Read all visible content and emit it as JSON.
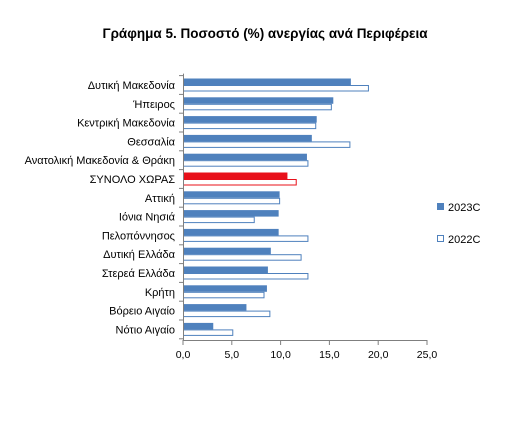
{
  "chart_data": {
    "type": "bar",
    "orientation": "horizontal",
    "title": "Γράφημα 5. Ποσοστό (%) ανεργίας ανά Περιφέρεια",
    "categories": [
      "Δυτική Μακεδονία",
      "Ήπειρος",
      "Κεντρική Μακεδονία",
      "Θεσσαλία",
      "Ανατολική Μακεδονία & Θράκη",
      "ΣΥΝΟΛΟ ΧΩΡΑΣ",
      "Αττική",
      "Ιόνια Νησιά",
      "Πελοπόννησος",
      "Δυτική Ελλάδα",
      "Στερεά Ελλάδα",
      "Κρήτη",
      "Βόρειο Αιγαίο",
      "Νότιο Αιγαίο"
    ],
    "series": [
      {
        "name": "2023C",
        "values": [
          17.2,
          15.4,
          13.7,
          13.2,
          12.7,
          10.7,
          9.9,
          9.8,
          9.8,
          9.0,
          8.7,
          8.6,
          6.5,
          3.1
        ]
      },
      {
        "name": "2022C",
        "values": [
          19.0,
          15.2,
          13.6,
          17.1,
          12.8,
          11.6,
          9.9,
          7.3,
          12.8,
          12.1,
          12.8,
          8.3,
          8.9,
          5.1
        ]
      }
    ],
    "highlight_category": "ΣΥΝΟΛΟ ΧΩΡΑΣ",
    "xlim": [
      0,
      25
    ],
    "xticks": [
      "0,0",
      "5,0",
      "10,0",
      "15,0",
      "20,0",
      "25,0"
    ],
    "xlabel": "",
    "ylabel": "",
    "grid": false,
    "legend_position": "right",
    "colors": {
      "series_2023": "#4f81bd",
      "series_2022_fill": "#ffffff",
      "series_2022_stroke": "#4f81bd",
      "highlight_2023": "#e8101a",
      "highlight_2022_stroke": "#e8101a",
      "axis": "#7f7f7f"
    }
  }
}
